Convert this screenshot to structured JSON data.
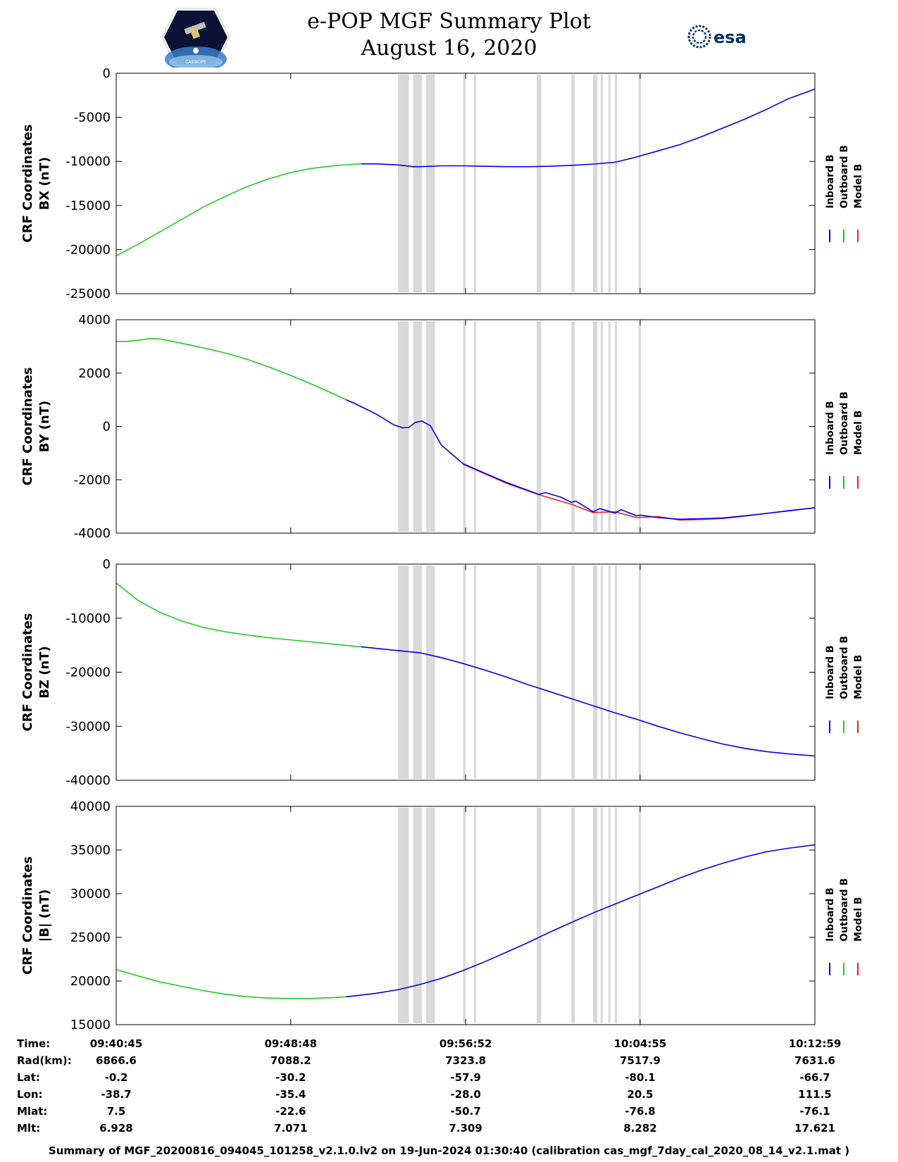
{
  "header": {
    "title_line1": "e-POP MGF Summary Plot",
    "title_line2": "August 16, 2020",
    "left_logo_text": "CASSIOPE",
    "right_logo_text": "esa"
  },
  "legend": {
    "entries": [
      "Inboard B",
      "Outboard B",
      "Model B"
    ],
    "colors": [
      "#0000ee",
      "#22cc22",
      "#ee2222"
    ]
  },
  "time_ticks": [
    "09:40:45",
    "09:48:48",
    "09:56:52",
    "10:04:55",
    "10:12:59"
  ],
  "ephemeris": {
    "rows": [
      {
        "label": "Time:",
        "values": [
          "09:40:45",
          "09:48:48",
          "09:56:52",
          "10:04:55",
          "10:12:59"
        ]
      },
      {
        "label": "Rad(km):",
        "values": [
          "6866.6",
          "7088.2",
          "7323.8",
          "7517.9",
          "7631.6"
        ]
      },
      {
        "label": "Lat:",
        "values": [
          "-0.2",
          "-30.2",
          "-57.9",
          "-80.1",
          "-66.7"
        ]
      },
      {
        "label": "Lon:",
        "values": [
          "-38.7",
          "-35.4",
          "-28.0",
          "20.5",
          "111.5"
        ]
      },
      {
        "label": "Mlat:",
        "values": [
          "7.5",
          "-22.6",
          "-50.7",
          "-76.8",
          "-76.1"
        ]
      },
      {
        "label": "Mlt:",
        "values": [
          "6.928",
          "7.071",
          "7.309",
          "8.282",
          "17.621"
        ]
      }
    ]
  },
  "footer": {
    "text": "Summary of MGF_20200816_094045_101258_v2.1.0.lv2 on 19-Jun-2024 01:30:40 (calibration cas_mgf_7day_cal_2020_08_14_v2.1.mat )"
  },
  "chart_data": [
    {
      "type": "line",
      "ylabel_line1": "CRF Coordinates",
      "ylabel_line2": "BX (nT)",
      "ylim": [
        -25000,
        0
      ],
      "yticks": [
        0,
        -5000,
        -10000,
        -15000,
        -20000,
        -25000
      ],
      "x_unit": "minutes since 09:40:45",
      "xlim": [
        0,
        32.23
      ],
      "x_ticks": [
        0,
        8.05,
        16.12,
        24.17,
        32.23
      ],
      "gray_bands": [
        [
          13.0,
          13.5
        ],
        [
          13.7,
          14.1
        ],
        [
          14.3,
          14.7
        ],
        [
          16.0,
          16.12
        ],
        [
          16.5,
          16.6
        ],
        [
          19.4,
          19.6
        ],
        [
          21.0,
          21.15
        ],
        [
          22.0,
          22.2
        ],
        [
          22.35,
          22.45
        ],
        [
          22.7,
          22.8
        ],
        [
          23.0,
          23.1
        ],
        [
          24.1,
          24.2
        ]
      ],
      "series": [
        {
          "name": "Outboard B",
          "color": "#22cc22",
          "x": [
            0,
            1,
            2,
            3,
            4,
            5,
            6,
            7,
            8,
            9,
            10,
            11,
            11.3
          ],
          "values": [
            -20700,
            -19400,
            -18000,
            -16600,
            -15200,
            -14000,
            -12900,
            -12000,
            -11300,
            -10800,
            -10500,
            -10300,
            -10280
          ]
        },
        {
          "name": "Inboard B",
          "color": "#0000ee",
          "x": [
            11.3,
            12,
            13,
            13.7,
            14,
            15,
            16,
            17,
            18,
            19,
            20,
            21,
            22,
            23,
            24,
            25,
            26,
            27,
            28,
            29,
            30,
            31,
            32.23
          ],
          "values": [
            -10280,
            -10280,
            -10400,
            -10600,
            -10600,
            -10500,
            -10500,
            -10550,
            -10600,
            -10600,
            -10550,
            -10450,
            -10300,
            -10100,
            -9500,
            -8800,
            -8100,
            -7200,
            -6200,
            -5200,
            -4100,
            -2900,
            -1800
          ]
        }
      ]
    },
    {
      "type": "line",
      "ylabel_line1": "CRF Coordinates",
      "ylabel_line2": "BY (nT)",
      "ylim": [
        -4000,
        4000
      ],
      "yticks": [
        4000,
        2000,
        0,
        -2000,
        -4000
      ],
      "x_unit": "minutes since 09:40:45",
      "xlim": [
        0,
        32.23
      ],
      "x_ticks": [
        0,
        8.05,
        16.12,
        24.17,
        32.23
      ],
      "gray_bands": [
        [
          13.0,
          13.5
        ],
        [
          13.7,
          14.1
        ],
        [
          14.3,
          14.7
        ],
        [
          16.0,
          16.12
        ],
        [
          16.5,
          16.6
        ],
        [
          19.4,
          19.6
        ],
        [
          21.0,
          21.15
        ],
        [
          22.0,
          22.2
        ],
        [
          22.35,
          22.45
        ],
        [
          22.7,
          22.8
        ],
        [
          23.0,
          23.1
        ],
        [
          24.1,
          24.2
        ]
      ],
      "series": [
        {
          "name": "Outboard B",
          "color": "#22cc22",
          "x": [
            0,
            0.5,
            1,
            1.5,
            2,
            3,
            4,
            5,
            6,
            7,
            8,
            9,
            10,
            10.6
          ],
          "values": [
            3180,
            3190,
            3230,
            3290,
            3280,
            3120,
            2950,
            2760,
            2530,
            2240,
            1930,
            1590,
            1230,
            1000
          ]
        },
        {
          "name": "Model B",
          "color": "#ee2222",
          "x": [
            16,
            18,
            19.5,
            21,
            22,
            23,
            24,
            25,
            26,
            27,
            28,
            29,
            30,
            31,
            32.23
          ],
          "values": [
            -1420,
            -2130,
            -2560,
            -2920,
            -3230,
            -3200,
            -3420,
            -3380,
            -3510,
            -3490,
            -3450,
            -3360,
            -3260,
            -3170,
            -3050
          ]
        },
        {
          "name": "Inboard B",
          "color": "#0000ee",
          "x": [
            10.6,
            11,
            12,
            12.8,
            13.2,
            13.5,
            13.8,
            14.1,
            14.5,
            15,
            16,
            17,
            18,
            19,
            19.5,
            19.8,
            20.5,
            21,
            21.2,
            21.6,
            22,
            22.3,
            22.6,
            23,
            23.3,
            23.6,
            24,
            24.2,
            25,
            25.5,
            26,
            26.5,
            27,
            28,
            29,
            30,
            31,
            32.23
          ],
          "values": [
            1000,
            860,
            460,
            60,
            -50,
            -40,
            150,
            200,
            20,
            -700,
            -1400,
            -1750,
            -2100,
            -2400,
            -2550,
            -2480,
            -2650,
            -2850,
            -2800,
            -3000,
            -3200,
            -3080,
            -3150,
            -3250,
            -3120,
            -3220,
            -3350,
            -3330,
            -3420,
            -3450,
            -3480,
            -3470,
            -3460,
            -3430,
            -3350,
            -3260,
            -3160,
            -3050
          ]
        }
      ]
    },
    {
      "type": "line",
      "ylabel_line1": "CRF Coordinates",
      "ylabel_line2": "BZ (nT)",
      "ylim": [
        -40000,
        0
      ],
      "yticks": [
        0,
        -10000,
        -20000,
        -30000,
        -40000
      ],
      "x_unit": "minutes since 09:40:45",
      "xlim": [
        0,
        32.23
      ],
      "x_ticks": [
        0,
        8.05,
        16.12,
        24.17,
        32.23
      ],
      "gray_bands": [
        [
          13.0,
          13.5
        ],
        [
          13.7,
          14.1
        ],
        [
          14.3,
          14.7
        ],
        [
          16.0,
          16.12
        ],
        [
          16.5,
          16.6
        ],
        [
          19.4,
          19.6
        ],
        [
          21.0,
          21.15
        ],
        [
          22.0,
          22.2
        ],
        [
          22.35,
          22.45
        ],
        [
          22.7,
          22.8
        ],
        [
          23.0,
          23.1
        ],
        [
          24.1,
          24.2
        ]
      ],
      "series": [
        {
          "name": "Outboard B",
          "color": "#22cc22",
          "x": [
            0,
            1,
            2,
            3,
            4,
            5,
            6,
            7,
            8,
            9,
            10,
            11,
            11.3
          ],
          "values": [
            -3500,
            -6700,
            -8900,
            -10500,
            -11700,
            -12500,
            -13100,
            -13600,
            -14000,
            -14400,
            -14800,
            -15200,
            -15300
          ]
        },
        {
          "name": "Inboard B",
          "color": "#0000ee",
          "x": [
            11.3,
            12,
            13,
            14,
            15,
            16,
            17,
            18,
            19,
            20,
            21,
            22,
            23,
            24,
            25,
            26,
            27,
            28,
            29,
            30,
            31,
            32.23
          ],
          "values": [
            -15300,
            -15600,
            -16000,
            -16400,
            -17300,
            -18400,
            -19600,
            -20900,
            -22300,
            -23600,
            -24900,
            -26200,
            -27500,
            -28700,
            -30000,
            -31200,
            -32300,
            -33300,
            -34100,
            -34700,
            -35100,
            -35500
          ]
        }
      ]
    },
    {
      "type": "line",
      "ylabel_line1": "CRF Coordinates",
      "ylabel_line2": "|B| (nT)",
      "ylim": [
        15000,
        40000
      ],
      "yticks": [
        40000,
        35000,
        30000,
        25000,
        20000,
        15000
      ],
      "x_unit": "minutes since 09:40:45",
      "xlim": [
        0,
        32.23
      ],
      "x_ticks": [
        0,
        8.05,
        16.12,
        24.17,
        32.23
      ],
      "gray_bands": [
        [
          13.0,
          13.5
        ],
        [
          13.7,
          14.1
        ],
        [
          14.3,
          14.7
        ],
        [
          16.0,
          16.12
        ],
        [
          16.5,
          16.6
        ],
        [
          19.4,
          19.6
        ],
        [
          21.0,
          21.15
        ],
        [
          22.0,
          22.2
        ],
        [
          22.35,
          22.45
        ],
        [
          22.7,
          22.8
        ],
        [
          23.0,
          23.1
        ],
        [
          24.1,
          24.2
        ]
      ],
      "series": [
        {
          "name": "Outboard B",
          "color": "#22cc22",
          "x": [
            0,
            1,
            2,
            3,
            4,
            5,
            6,
            7,
            8,
            9,
            10,
            10.6
          ],
          "values": [
            21300,
            20600,
            19900,
            19400,
            18900,
            18500,
            18200,
            18050,
            18000,
            18000,
            18100,
            18200
          ]
        },
        {
          "name": "Inboard B",
          "color": "#0000ee",
          "x": [
            10.6,
            11,
            12,
            13,
            14,
            15,
            16,
            17,
            18,
            19,
            20,
            21,
            22,
            23,
            24,
            25,
            26,
            27,
            28,
            29,
            30,
            31,
            32.23
          ],
          "values": [
            18200,
            18300,
            18600,
            19000,
            19600,
            20300,
            21200,
            22200,
            23300,
            24400,
            25600,
            26700,
            27800,
            28800,
            29800,
            30800,
            31800,
            32700,
            33500,
            34200,
            34800,
            35200,
            35600
          ]
        }
      ]
    }
  ]
}
